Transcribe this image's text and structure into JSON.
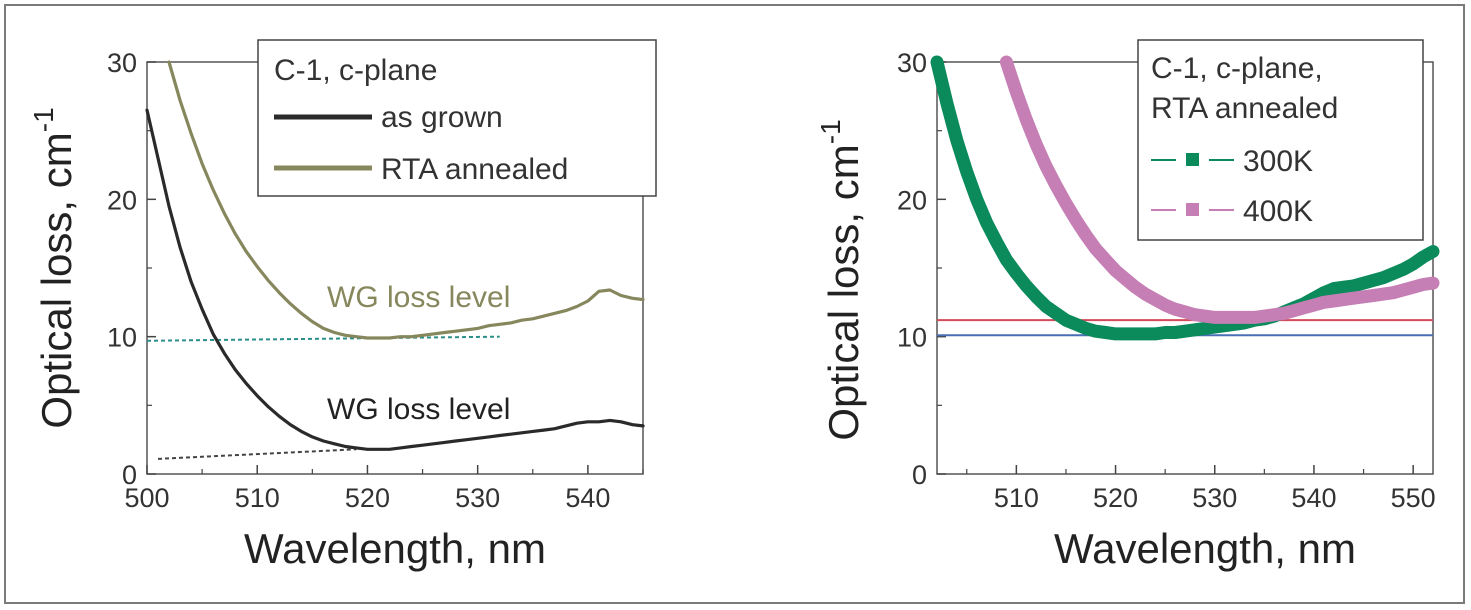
{
  "chart_data": [
    {
      "type": "line",
      "xlabel": "Wavelength, nm",
      "ylabel": "Optical loss, cm",
      "ylabel_superscript": "-1",
      "xlim": [
        500,
        545
      ],
      "ylim": [
        0,
        30
      ],
      "xticks": [
        500,
        510,
        520,
        530,
        540
      ],
      "yticks": [
        0,
        10,
        20,
        30
      ],
      "legend": {
        "title": "C-1, c-plane",
        "placement": "top-right",
        "entries": [
          "as grown",
          "RTA annealed"
        ]
      },
      "series": [
        {
          "name": "as grown",
          "color": "#2a2a2a",
          "x": [
            500,
            501,
            502,
            503,
            504,
            505,
            506,
            507,
            508,
            509,
            510,
            511,
            512,
            513,
            514,
            515,
            516,
            517,
            518,
            519,
            520,
            521,
            522,
            523,
            524,
            525,
            526,
            527,
            528,
            529,
            530,
            531,
            532,
            533,
            534,
            535,
            536,
            537,
            538,
            539,
            540,
            541,
            542,
            543,
            544,
            545
          ],
          "y": [
            26.5,
            23.0,
            19.5,
            16.5,
            14.0,
            12.0,
            10.2,
            8.8,
            7.6,
            6.6,
            5.7,
            4.9,
            4.2,
            3.6,
            3.1,
            2.7,
            2.4,
            2.2,
            2.0,
            1.9,
            1.8,
            1.8,
            1.8,
            1.9,
            2.0,
            2.1,
            2.2,
            2.3,
            2.4,
            2.5,
            2.6,
            2.7,
            2.8,
            2.9,
            3.0,
            3.1,
            3.2,
            3.3,
            3.5,
            3.7,
            3.8,
            3.8,
            3.9,
            3.8,
            3.6,
            3.5
          ]
        },
        {
          "name": "RTA annealed",
          "color": "#87875e",
          "x": [
            502,
            503,
            504,
            505,
            506,
            507,
            508,
            509,
            510,
            511,
            512,
            513,
            514,
            515,
            516,
            517,
            518,
            519,
            520,
            521,
            522,
            523,
            524,
            525,
            526,
            527,
            528,
            529,
            530,
            531,
            532,
            533,
            534,
            535,
            536,
            537,
            538,
            539,
            540,
            541,
            542,
            543,
            544,
            545
          ],
          "y": [
            30.0,
            27.2,
            24.8,
            22.6,
            20.7,
            19.0,
            17.5,
            16.2,
            15.1,
            14.1,
            13.2,
            12.4,
            11.7,
            11.1,
            10.6,
            10.3,
            10.1,
            10.0,
            9.9,
            9.9,
            9.9,
            10.0,
            10.0,
            10.1,
            10.2,
            10.3,
            10.4,
            10.5,
            10.6,
            10.8,
            10.9,
            11.0,
            11.2,
            11.3,
            11.5,
            11.7,
            11.9,
            12.2,
            12.6,
            13.3,
            13.4,
            13.0,
            12.8,
            12.7
          ]
        }
      ],
      "reference_lines": [
        {
          "label": "WG loss level",
          "y_start": 9.7,
          "y_end": 10.0,
          "x_start": 500,
          "x_end": 532,
          "color": "#2a8f8a",
          "label_color": "#87875e"
        },
        {
          "label": "WG loss level",
          "y_start": 1.1,
          "y_end": 1.8,
          "x_start": 501,
          "x_end": 519,
          "color": "#444444",
          "label_color": "#222222"
        }
      ]
    },
    {
      "type": "line",
      "xlabel": "Wavelength, nm",
      "ylabel": "Optical loss, cm",
      "ylabel_superscript": "-1",
      "xlim": [
        502,
        552
      ],
      "ylim": [
        0,
        30
      ],
      "xticks": [
        510,
        520,
        530,
        540,
        550
      ],
      "yticks": [
        0,
        10,
        20,
        30
      ],
      "legend": {
        "title_lines": [
          "C-1, c-plane,",
          "RTA annealed"
        ],
        "placement": "top-right",
        "entries": [
          "300K",
          "400K"
        ]
      },
      "series": [
        {
          "name": "300K",
          "color": "#0b8a5c",
          "x": [
            502,
            503,
            504,
            505,
            506,
            507,
            508,
            509,
            510,
            511,
            512,
            513,
            514,
            515,
            516,
            517,
            518,
            519,
            520,
            521,
            522,
            523,
            524,
            525,
            526,
            527,
            528,
            529,
            530,
            531,
            532,
            533,
            534,
            535,
            536,
            537,
            538,
            539,
            540,
            541,
            542,
            543,
            544,
            545,
            546,
            547,
            548,
            549,
            550,
            551,
            552
          ],
          "y": [
            30.0,
            27.0,
            24.3,
            22.0,
            20.0,
            18.3,
            16.9,
            15.6,
            14.6,
            13.7,
            12.9,
            12.2,
            11.7,
            11.2,
            10.9,
            10.6,
            10.4,
            10.3,
            10.2,
            10.2,
            10.2,
            10.2,
            10.2,
            10.3,
            10.3,
            10.4,
            10.5,
            10.6,
            10.7,
            10.8,
            10.9,
            11.0,
            11.2,
            11.3,
            11.5,
            11.8,
            12.1,
            12.4,
            12.8,
            13.2,
            13.5,
            13.6,
            13.7,
            13.9,
            14.1,
            14.3,
            14.6,
            14.9,
            15.3,
            15.8,
            16.2
          ]
        },
        {
          "name": "400K",
          "color": "#c57fb5",
          "x": [
            509,
            510,
            511,
            512,
            513,
            514,
            515,
            516,
            517,
            518,
            519,
            520,
            521,
            522,
            523,
            524,
            525,
            526,
            527,
            528,
            529,
            530,
            531,
            532,
            533,
            534,
            535,
            536,
            537,
            538,
            539,
            540,
            541,
            542,
            543,
            544,
            545,
            546,
            547,
            548,
            549,
            550,
            551,
            552
          ],
          "y": [
            30.0,
            27.8,
            25.8,
            24.0,
            22.4,
            21.0,
            19.7,
            18.5,
            17.4,
            16.4,
            15.6,
            14.8,
            14.2,
            13.6,
            13.1,
            12.7,
            12.3,
            12.0,
            11.8,
            11.6,
            11.5,
            11.4,
            11.4,
            11.4,
            11.4,
            11.4,
            11.5,
            11.6,
            11.7,
            11.9,
            12.1,
            12.3,
            12.5,
            12.6,
            12.7,
            12.8,
            12.9,
            13.0,
            13.1,
            13.2,
            13.4,
            13.6,
            13.8,
            13.9
          ]
        }
      ],
      "reference_lines": [
        {
          "y": 11.2,
          "x_start": 502,
          "x_end": 552,
          "color": "#d44a5a"
        },
        {
          "y": 10.1,
          "x_start": 502,
          "x_end": 552,
          "color": "#4a6fb5"
        }
      ]
    }
  ],
  "annotations": {
    "upper_label": "WG loss level",
    "lower_label": "WG loss level"
  }
}
